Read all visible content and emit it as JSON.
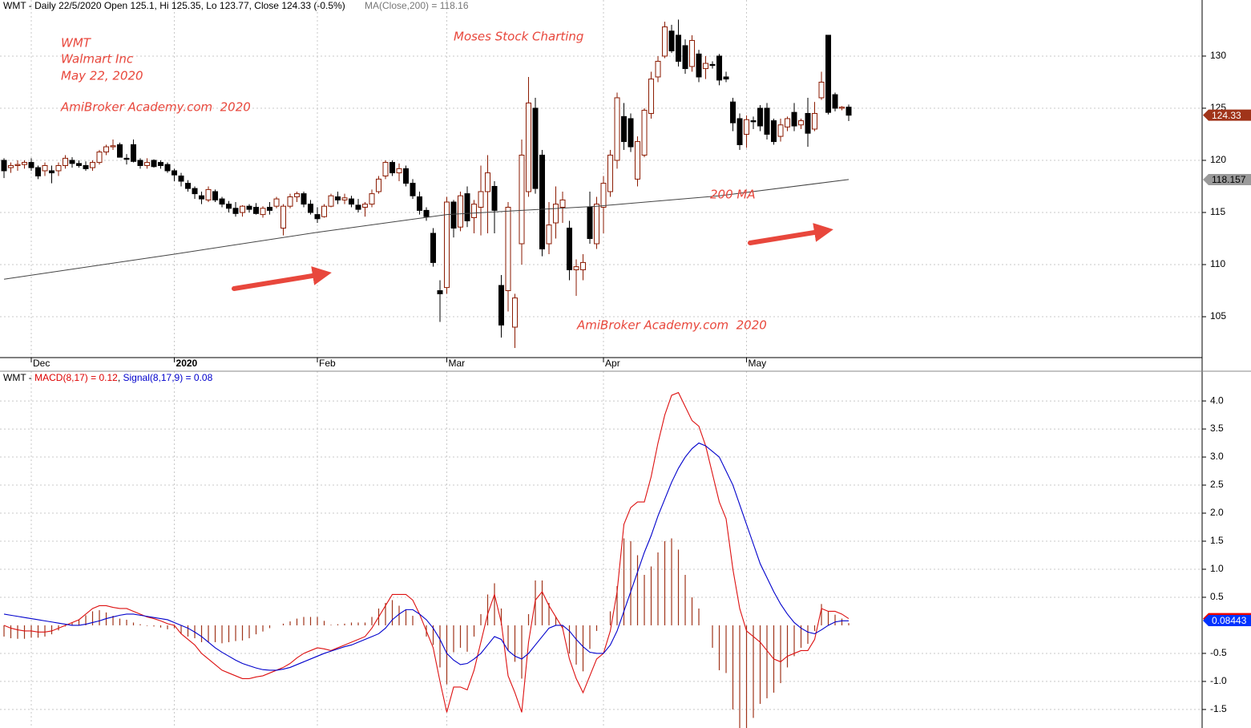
{
  "chart_data": [
    {
      "type": "candlestick",
      "title": "WMT - Daily 22/5/2020 Open 125.1, Hi 125.35, Lo 123.77, Close 124.33 (-0.5%)",
      "annotations": [
        "WMT",
        "Walmart Inc",
        "May 22, 2020",
        "AmiBroker Academy.com  2020",
        "Moses Stock Charting",
        "200 MA",
        "AmiBroker Academy.com  2020"
      ],
      "xlim": [
        -0.59,
        175.88
      ],
      "xticks": [
        {
          "value": 4,
          "label": "Dec"
        },
        {
          "value": 25,
          "label": "2020"
        },
        {
          "value": 46,
          "label": "Feb"
        },
        {
          "value": 65,
          "label": "Mar"
        },
        {
          "value": 88,
          "label": "Apr"
        },
        {
          "value": 109,
          "label": "May"
        }
      ],
      "ylim": [
        101.08,
        135.38
      ],
      "yticks": [
        105,
        110,
        115,
        120,
        125,
        130
      ],
      "grid": true,
      "up_color": "#8b1a00",
      "down_color": "#000000",
      "open": [
        120,
        119.3,
        119.5,
        119.6,
        119.8,
        119.3,
        119,
        119,
        119,
        119.5,
        120,
        119.7,
        119.5,
        119.3,
        119.8,
        120.8,
        121.3,
        121.5,
        120.2,
        121.5,
        120,
        119.5,
        120,
        119.8,
        119.6,
        119,
        118.5,
        117.8,
        117.3,
        116.6,
        116.2,
        117,
        116.3,
        115.8,
        115.4,
        115,
        115.6,
        115.5,
        114.8,
        115.5,
        115.6,
        113.5,
        115.6,
        116.5,
        116.8,
        115.8,
        114.8,
        114.6,
        115.6,
        116.5,
        116.2,
        116.3,
        115.7,
        115.5,
        115.8,
        117,
        118.5,
        119.8,
        118.8,
        119.2,
        117.8,
        116.5,
        115.2,
        113,
        107.5,
        107.8,
        116,
        113.6,
        116.8,
        114.5,
        115.5,
        117,
        117.5,
        108,
        107.5,
        104,
        112,
        117,
        125,
        120.5,
        112,
        114,
        115.5,
        113.5,
        109.5,
        109.5,
        115.5,
        112,
        115.5,
        117,
        120,
        124.2,
        124,
        118.2,
        120.5,
        124.5,
        128,
        130,
        132.4,
        132,
        131,
        129,
        130.2,
        128.8,
        129.2,
        130,
        128,
        125.6,
        124,
        122.5,
        123.8,
        125,
        125,
        123.8,
        122.3,
        123.2,
        124.6,
        123.4,
        124.5,
        123,
        126,
        132,
        126.3,
        125,
        125.1
      ],
      "high": [
        120.2,
        119.8,
        120,
        120,
        120.2,
        119.5,
        119.8,
        119.5,
        119.8,
        120.5,
        120.3,
        120,
        119.9,
        120,
        121,
        121.5,
        122,
        121.7,
        120.6,
        122,
        120.2,
        120.2,
        120.1,
        120,
        119.8,
        119.2,
        118.8,
        118.1,
        117.5,
        117,
        117.5,
        117.2,
        116.5,
        116.1,
        116,
        115.7,
        115.8,
        115.9,
        115.6,
        116,
        116.5,
        115.8,
        116.8,
        117,
        117,
        116.2,
        115.5,
        115.8,
        116.8,
        117,
        116.8,
        116.6,
        116.3,
        116,
        117.2,
        118.5,
        120,
        120,
        119.7,
        119.5,
        118.2,
        117,
        115.5,
        113.5,
        108.5,
        116.5,
        116.2,
        117,
        117.5,
        116.2,
        119.5,
        120.5,
        118,
        109,
        116,
        107.2,
        122,
        128,
        126,
        121,
        116,
        117.5,
        117,
        114.2,
        110.5,
        111,
        117,
        116.5,
        118.5,
        121,
        126.5,
        125.5,
        124.5,
        122.3,
        125,
        128.5,
        130,
        133.3,
        133,
        133.5,
        131.6,
        132,
        130.6,
        130,
        129.5,
        130.2,
        128.5,
        126,
        124.5,
        124.3,
        124.2,
        125.3,
        125.5,
        124,
        124,
        124.2,
        125.5,
        124,
        126,
        125.6,
        128.5,
        132,
        126.5,
        125.2,
        125.35
      ],
      "low": [
        118.3,
        118.8,
        119,
        119.2,
        119,
        118.2,
        118.5,
        117.8,
        118.5,
        119.2,
        119.3,
        119.3,
        119,
        119,
        119.6,
        120.5,
        121,
        120.3,
        119.6,
        119.8,
        119.2,
        119.2,
        119.3,
        119.2,
        118.8,
        118,
        117.5,
        117,
        116.3,
        115.8,
        116,
        116,
        115.5,
        115,
        114.6,
        114.6,
        115,
        114.8,
        114.5,
        114.8,
        115.4,
        112.8,
        115.4,
        116,
        115.5,
        114.8,
        114,
        114.5,
        115.5,
        115.8,
        115.8,
        115.5,
        115,
        114.6,
        115.5,
        116.8,
        118.2,
        118.5,
        118,
        117.5,
        116.3,
        114.8,
        114.2,
        109.8,
        104.5,
        107.2,
        112.6,
        113.2,
        113.6,
        113,
        112.8,
        113,
        113,
        103,
        105.5,
        102,
        110,
        116.5,
        116.8,
        110.8,
        111,
        112.5,
        114,
        108.5,
        107,
        108.5,
        112,
        111.5,
        113,
        116.5,
        119.2,
        121,
        120.8,
        117.5,
        120.3,
        124,
        127.5,
        129.8,
        130.3,
        129,
        128.3,
        128.5,
        127.5,
        127.8,
        128.8,
        127.2,
        127.5,
        122.8,
        121,
        121.2,
        123,
        122.8,
        122,
        121.5,
        121.8,
        122.8,
        122.8,
        123,
        121.3,
        122.8,
        125.8,
        124.4,
        124.7,
        124.8,
        123.77
      ],
      "close": [
        119,
        119.5,
        119.6,
        119.8,
        119.3,
        118.5,
        119.5,
        118.8,
        119.5,
        120.2,
        119.7,
        119.5,
        119.2,
        119.8,
        120.8,
        121.3,
        121.4,
        120.3,
        120.1,
        119.9,
        119.5,
        119.8,
        119.4,
        119.5,
        119,
        118.6,
        118,
        117.3,
        116.8,
        116.3,
        117.2,
        116.2,
        115.8,
        115.4,
        114.9,
        115.6,
        115.3,
        114.9,
        115.4,
        115.2,
        116.3,
        115.6,
        116.5,
        116.8,
        115.8,
        115,
        114.4,
        115.6,
        116.6,
        116.2,
        116.4,
        115.8,
        115.3,
        115.8,
        116.8,
        118.2,
        119.8,
        118.8,
        119.2,
        117.8,
        116.6,
        115.2,
        114.6,
        110.2,
        107.2,
        116,
        113.5,
        116.6,
        114.2,
        115.8,
        117,
        118.8,
        115.2,
        104.2,
        115.5,
        106.8,
        120.5,
        125.5,
        117.3,
        111.5,
        113.8,
        115.8,
        116.2,
        109.5,
        109.8,
        110.2,
        112.5,
        115.8,
        117.8,
        120.5,
        126,
        121.8,
        121.3,
        121.8,
        124.8,
        127.8,
        129.5,
        132.8,
        130.5,
        129.5,
        128.8,
        131.5,
        128,
        129.3,
        129.1,
        127.7,
        127.8,
        123.6,
        121.5,
        123.9,
        123.7,
        123.3,
        122.5,
        121.8,
        123.4,
        124,
        123.3,
        123.8,
        122.6,
        124.5,
        127.5,
        124.6,
        125,
        125.1,
        124.33
      ],
      "ma": {
        "label": "MA(Close,200) = 118.16",
        "color": "#444444",
        "x": [
          0,
          25,
          46,
          65,
          87,
          105,
          124
        ],
        "values": [
          108.6,
          111,
          113.1,
          114.8,
          115.6,
          116.6,
          118.16
        ]
      },
      "price_markers": [
        {
          "value": 124.33,
          "color": "#a0341a",
          "text_color": "#ffffff"
        },
        {
          "value": 118.157,
          "color": "#9a9a9a",
          "text_color": "#000000"
        }
      ]
    },
    {
      "type": "macd",
      "title_parts": [
        {
          "text": "WMT - ",
          "color": "#000000"
        },
        {
          "text": "MACD(8,17) = 0.12",
          "color": "#dd0000"
        },
        {
          "text": ", ",
          "color": "#000000"
        },
        {
          "text": "Signal(8,17,9) = 0.08",
          "color": "#0000cc"
        }
      ],
      "xlim": [
        -0.59,
        175.88
      ],
      "ylim": [
        -1.83,
        4.53
      ],
      "yticks": [
        -1.5,
        {
          "value": -1,
          "label": "-1.0"
        },
        -0.5,
        0.5,
        {
          "value": 1,
          "label": "1.0"
        },
        1.5,
        {
          "value": 2,
          "label": "2.0"
        },
        2.5,
        {
          "value": 3,
          "label": "3.0"
        },
        3.5,
        {
          "value": 4,
          "label": "4.0"
        }
      ],
      "grid": true,
      "series": [
        {
          "color": "#dd1111",
          "values": [
            0.0,
            -0.05,
            -0.08,
            -0.1,
            -0.1,
            -0.12,
            -0.12,
            -0.1,
            -0.05,
            0.0,
            0.05,
            0.1,
            0.2,
            0.3,
            0.35,
            0.35,
            0.32,
            0.3,
            0.3,
            0.25,
            0.2,
            0.15,
            0.12,
            0.08,
            0.03,
            0.0,
            -0.15,
            -0.25,
            -0.35,
            -0.5,
            -0.6,
            -0.7,
            -0.8,
            -0.85,
            -0.9,
            -0.95,
            -0.95,
            -0.92,
            -0.9,
            -0.85,
            -0.8,
            -0.75,
            -0.68,
            -0.58,
            -0.5,
            -0.45,
            -0.4,
            -0.42,
            -0.45,
            -0.4,
            -0.35,
            -0.3,
            -0.25,
            -0.2,
            -0.05,
            0.15,
            0.35,
            0.55,
            0.55,
            0.55,
            0.45,
            0.2,
            -0.1,
            -0.4,
            -1.0,
            -1.55,
            -1.1,
            -1.1,
            -1.15,
            -0.8,
            -0.3,
            0.2,
            0.55,
            0.05,
            -0.9,
            -1.2,
            -1.55,
            -0.3,
            0.45,
            0.6,
            0.35,
            0.15,
            -0.05,
            -0.6,
            -0.95,
            -1.2,
            -0.9,
            -0.6,
            -0.5,
            -0.1,
            0.6,
            1.8,
            2.1,
            2.2,
            2.2,
            2.65,
            3.25,
            3.75,
            4.1,
            4.15,
            3.9,
            3.65,
            3.55,
            3.2,
            2.7,
            2.2,
            1.9,
            1.0,
            0.3,
            -0.1,
            -0.2,
            -0.3,
            -0.45,
            -0.6,
            -0.65,
            -0.55,
            -0.5,
            -0.45,
            -0.45,
            -0.25,
            0.3,
            0.25,
            0.25,
            0.2,
            0.12
          ]
        },
        {
          "color": "#0000cc",
          "values": [
            0.2,
            0.18,
            0.16,
            0.14,
            0.12,
            0.1,
            0.08,
            0.06,
            0.04,
            0.02,
            0.0,
            0.0,
            0.02,
            0.05,
            0.08,
            0.12,
            0.15,
            0.18,
            0.2,
            0.2,
            0.18,
            0.16,
            0.14,
            0.12,
            0.1,
            0.05,
            0.0,
            -0.05,
            -0.12,
            -0.2,
            -0.3,
            -0.4,
            -0.48,
            -0.55,
            -0.62,
            -0.68,
            -0.72,
            -0.76,
            -0.79,
            -0.8,
            -0.8,
            -0.78,
            -0.75,
            -0.7,
            -0.65,
            -0.6,
            -0.55,
            -0.5,
            -0.46,
            -0.42,
            -0.38,
            -0.35,
            -0.3,
            -0.25,
            -0.2,
            -0.15,
            -0.05,
            0.1,
            0.2,
            0.28,
            0.28,
            0.2,
            0.1,
            -0.05,
            -0.25,
            -0.5,
            -0.62,
            -0.7,
            -0.68,
            -0.6,
            -0.5,
            -0.35,
            -0.2,
            -0.25,
            -0.45,
            -0.55,
            -0.6,
            -0.5,
            -0.35,
            -0.2,
            -0.05,
            0.0,
            0.0,
            -0.1,
            -0.25,
            -0.38,
            -0.48,
            -0.5,
            -0.5,
            -0.35,
            -0.1,
            0.25,
            0.6,
            0.95,
            1.3,
            1.6,
            1.95,
            2.25,
            2.55,
            2.8,
            3.0,
            3.15,
            3.25,
            3.2,
            3.1,
            3.0,
            2.75,
            2.5,
            2.15,
            1.8,
            1.45,
            1.1,
            0.85,
            0.6,
            0.38,
            0.2,
            0.05,
            -0.05,
            -0.12,
            -0.15,
            -0.08,
            0.0,
            0.06,
            0.08,
            0.08
          ]
        }
      ],
      "histogram": {
        "color": "#a0341a",
        "values": [
          -0.2,
          -0.23,
          -0.24,
          -0.24,
          -0.22,
          -0.22,
          -0.2,
          -0.16,
          -0.09,
          -0.02,
          0.05,
          0.1,
          0.18,
          0.25,
          0.27,
          0.23,
          0.17,
          0.12,
          0.1,
          0.05,
          0.02,
          -0.01,
          -0.02,
          -0.04,
          -0.07,
          -0.05,
          -0.15,
          -0.2,
          -0.23,
          -0.3,
          -0.3,
          -0.3,
          -0.32,
          -0.3,
          -0.28,
          -0.27,
          -0.23,
          -0.16,
          -0.11,
          -0.05,
          0.0,
          0.03,
          0.07,
          0.12,
          0.15,
          0.15,
          0.15,
          0.08,
          0.01,
          0.02,
          0.03,
          0.05,
          0.05,
          0.05,
          0.15,
          0.3,
          0.4,
          0.45,
          0.35,
          0.27,
          0.17,
          0.0,
          -0.2,
          -0.35,
          -0.75,
          -1.05,
          -0.48,
          -0.4,
          -0.47,
          -0.2,
          0.2,
          0.55,
          0.75,
          0.3,
          -0.45,
          -0.65,
          -0.95,
          0.2,
          0.8,
          0.8,
          0.4,
          0.15,
          -0.05,
          -0.5,
          -0.7,
          -0.82,
          -0.42,
          -0.1,
          0.0,
          0.25,
          0.7,
          1.55,
          1.5,
          1.25,
          0.9,
          1.05,
          1.3,
          1.5,
          1.55,
          1.35,
          0.9,
          0.5,
          0.3,
          0.0,
          -0.4,
          -0.8,
          -0.85,
          -1.5,
          -1.85,
          -1.9,
          -1.65,
          -1.4,
          -1.3,
          -1.2,
          -1.03,
          -0.75,
          -0.55,
          -0.4,
          -0.33,
          -0.1,
          0.38,
          0.25,
          0.19,
          0.12,
          0.04
        ]
      },
      "markers": [
        {
          "value": 0.11921,
          "color": "#ee0000",
          "text_color": "#ffffff"
        },
        {
          "value": 0.08443,
          "color": "#0033ff",
          "text_color": "#ffffff"
        }
      ]
    }
  ]
}
